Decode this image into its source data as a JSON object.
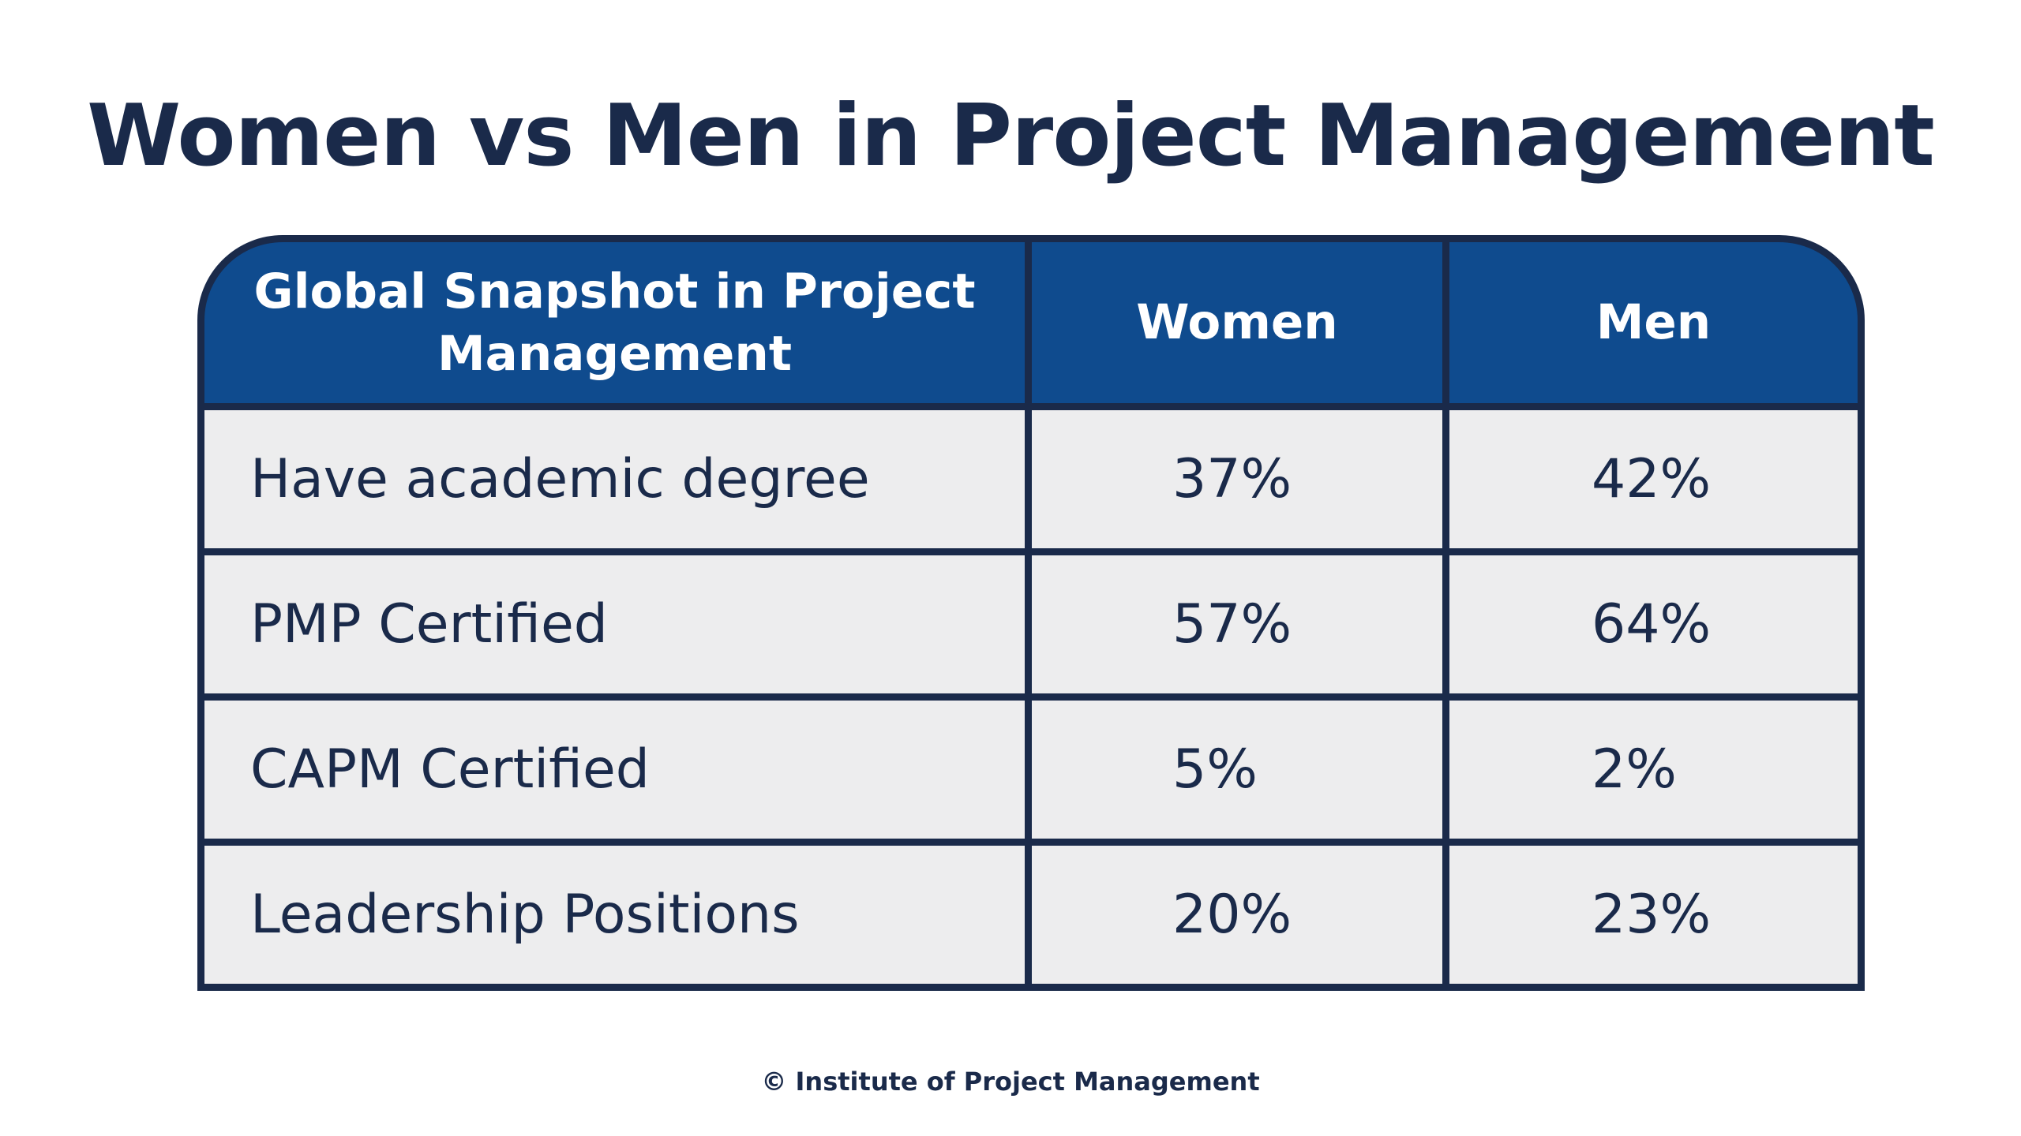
{
  "page": {
    "title": "Women vs Men in Project Management",
    "footer": "© Institute of Project Management"
  },
  "colors": {
    "header_background": "#0f4b8e",
    "header_text": "#ffffff",
    "row_background": "#ededee",
    "border": "#1a2a4a",
    "text": "#1a2a4a"
  },
  "chart_data": {
    "type": "table",
    "title": "Women vs Men in Project Management",
    "columns": [
      "Global Snapshot in Project Management",
      "Women",
      "Men"
    ],
    "rows": [
      {
        "metric": "Have academic degree",
        "women": "37%",
        "men": "42%"
      },
      {
        "metric": "PMP Certified",
        "women": "57%",
        "men": "64%"
      },
      {
        "metric": "CAPM Certified",
        "women": "5%",
        "men": "2%"
      },
      {
        "metric": "Leadership Positions",
        "women": "20%",
        "men": "23%"
      }
    ],
    "series": [
      {
        "name": "Women",
        "values": [
          37,
          57,
          5,
          20
        ]
      },
      {
        "name": "Men",
        "values": [
          42,
          64,
          2,
          23
        ]
      }
    ],
    "categories": [
      "Have academic degree",
      "PMP Certified",
      "CAPM Certified",
      "Leadership Positions"
    ]
  }
}
